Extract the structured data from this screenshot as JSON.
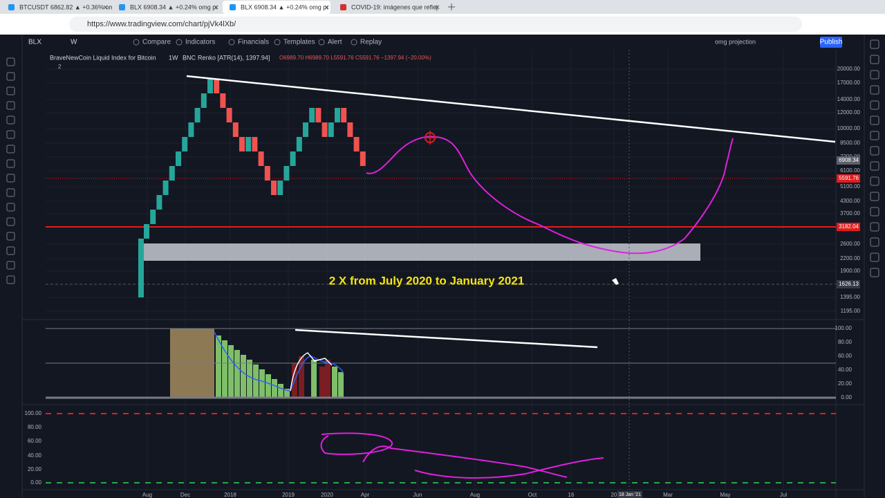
{
  "browser": {
    "tabs": [
      "BTCUSDT 6862.82 ▲ +0.36% om",
      "BLX 6908.34 ▲ +0.24% omg pr",
      "BLX 6908.34 ▲ +0.24% omg pr",
      "COVID-19: imágenes que reflej"
    ],
    "url": "https://www.tradingview.com/chart/pjVk4lXb/"
  },
  "toolbar": {
    "symbol": "BLX",
    "interval": "W",
    "items": [
      "Compare",
      "Indicators",
      "Financials",
      "Templates",
      "Alert",
      "Replay"
    ],
    "layout": "omg projection",
    "publish": "Publish"
  },
  "chart": {
    "legend": {
      "title": "BraveNewCoin Liquid Index for Bitcoin",
      "interval": "1W",
      "exchange": "BNC",
      "style": "Renko [ATR(14), 1397.94]",
      "ohlc": "O6989.70 H6989.70 L5591.76 C5591.76 −1397.94 (−20.00%)",
      "count": "2"
    },
    "price_axis": [
      "20000.00",
      "17000.00",
      "14000.00",
      "12000.00",
      "10000.00",
      "8500.00",
      "7200.00",
      "6100.00",
      "5100.00",
      "4300.00",
      "3700.00",
      "2600.00",
      "2200.00",
      "1900.00",
      "1395.00",
      "1195.00"
    ],
    "price_markers": [
      "6908.34",
      "5591.76",
      "3182.04",
      "1626.13"
    ],
    "annotation": "2 X from July 2020 to January 2021",
    "pane2_axis": [
      "100.00",
      "80.00",
      "60.00",
      "40.00",
      "20.00",
      "0.00"
    ],
    "pane3_axis": [
      "100.00",
      "80.00",
      "60.00",
      "40.00",
      "20.00",
      "0.00"
    ],
    "time_axis": [
      "Aug",
      "Dec",
      "2018",
      "2019",
      "2020",
      "Apr",
      "Jun",
      "Aug",
      "Oct",
      "16",
      "20",
      "Mar",
      "May",
      "Jul"
    ],
    "crosshair_date": "18 Jan '21"
  }
}
